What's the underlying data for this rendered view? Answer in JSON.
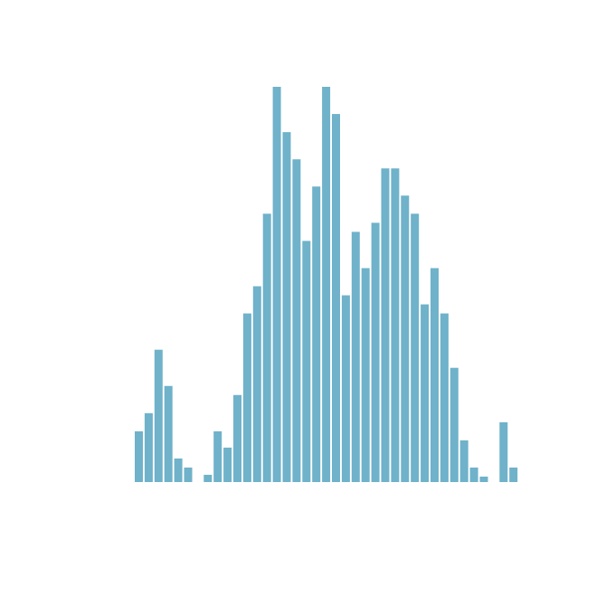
{
  "chart_data": {
    "type": "bar",
    "title": "",
    "xlabel": "",
    "ylabel": "",
    "bar_color": "#6fb2ca",
    "background": "#ffffff",
    "axes_visible": false,
    "grid": false,
    "ylim": [
      0,
      43.6
    ],
    "values": [
      5.6,
      7.6,
      14.6,
      10.6,
      2.6,
      1.6,
      0,
      0.8,
      5.6,
      3.8,
      9.6,
      18.6,
      21.6,
      29.6,
      43.6,
      38.6,
      35.6,
      26.6,
      32.6,
      43.6,
      40.6,
      20.6,
      27.6,
      23.6,
      28.6,
      34.6,
      34.6,
      31.6,
      29.6,
      19.6,
      23.6,
      18.6,
      12.6,
      4.6,
      1.6,
      0.6,
      0,
      6.6,
      1.6
    ]
  }
}
